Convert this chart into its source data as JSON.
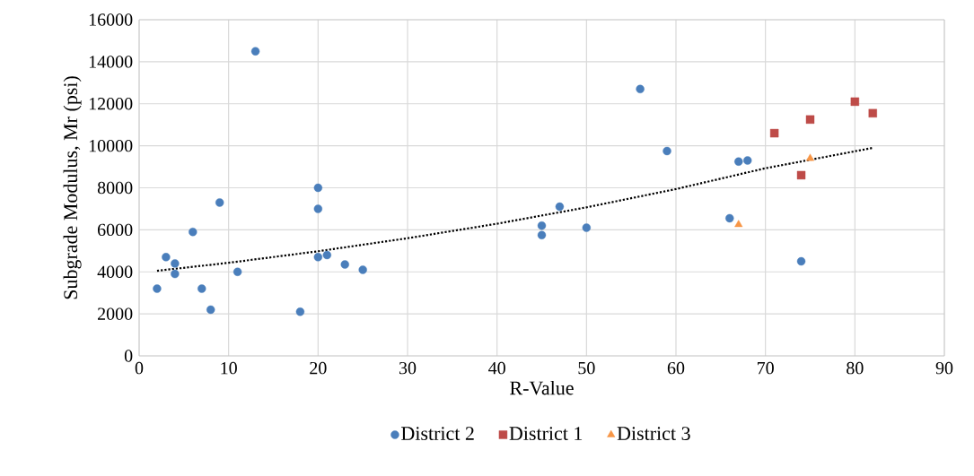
{
  "chart_data": {
    "type": "scatter",
    "xlabel": "R-Value",
    "ylabel": "Subgrade Modulus, Mr (psi)",
    "xlim": [
      0,
      90
    ],
    "xticks": [
      0,
      10,
      20,
      30,
      40,
      50,
      60,
      70,
      80,
      90
    ],
    "ylim": [
      0,
      16000
    ],
    "yticks": [
      0,
      2000,
      4000,
      6000,
      8000,
      10000,
      12000,
      14000,
      16000
    ],
    "grid": true,
    "legend": "bottom",
    "series": [
      {
        "name": "District 2",
        "color": "#4a7ebb",
        "marker": "circle",
        "x": [
          2,
          3,
          4,
          4,
          6,
          7,
          8,
          9,
          11,
          13,
          18,
          20,
          20,
          20,
          21,
          23,
          25,
          45,
          45,
          47,
          50,
          56,
          59,
          66,
          67,
          68,
          74
        ],
        "values": [
          3200,
          4700,
          4400,
          3900,
          5900,
          3200,
          2200,
          7300,
          4000,
          14500,
          2100,
          8000,
          7000,
          4700,
          4800,
          4350,
          4100,
          6200,
          5750,
          7100,
          6100,
          12700,
          9750,
          6550,
          9250,
          9300,
          4500
        ]
      },
      {
        "name": "District 1",
        "color": "#be4b48",
        "marker": "square",
        "x": [
          71,
          75,
          80,
          82,
          74
        ],
        "values": [
          10600,
          11250,
          12100,
          11550,
          8600
        ]
      },
      {
        "name": "District 3",
        "color": "#f79646",
        "marker": "triangle",
        "x": [
          67,
          75
        ],
        "values": [
          6250,
          9400
        ]
      },
      {
        "type": "line",
        "color": "#000000",
        "marker": "none",
        "line_style": "dotted",
        "x": [
          2,
          10,
          20,
          30,
          40,
          50,
          60,
          70,
          82
        ],
        "values": [
          4050,
          4430,
          4980,
          5600,
          6290,
          7070,
          7940,
          8930,
          9900
        ]
      }
    ]
  }
}
